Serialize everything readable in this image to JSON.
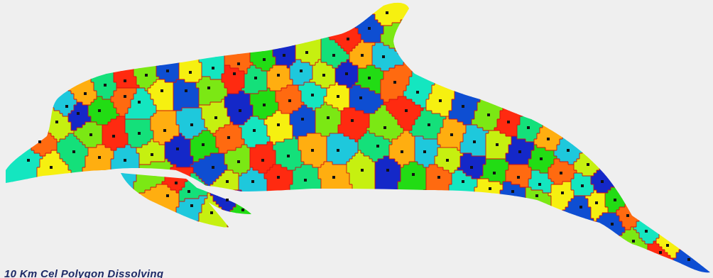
{
  "caption": "10 Km Cel Polygon Dissolving",
  "colors": {
    "background": "#efefef",
    "cell_border": "#d21010",
    "site_marker": "#111111",
    "palette": [
      "#ff2a10",
      "#ff6a10",
      "#ffae10",
      "#f6f010",
      "#c6f010",
      "#7be814",
      "#22dc14",
      "#14e07a",
      "#14e6c0",
      "#1ec8dc",
      "#0e4ed2",
      "#1428c8"
    ]
  },
  "figure": {
    "subject": "dolphin-mesh",
    "cells": "voronoi",
    "site_markers": "black-squares"
  }
}
